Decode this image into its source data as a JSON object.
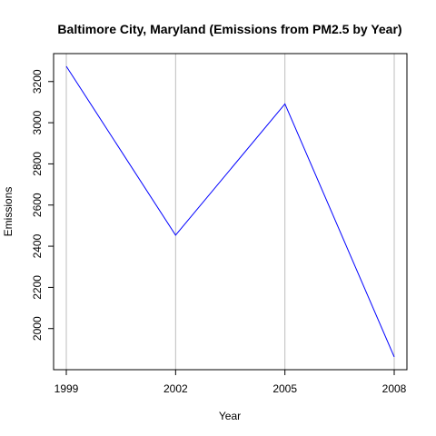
{
  "chart_data": {
    "type": "line",
    "title": "Baltimore City, Maryland (Emissions from PM2.5 by Year)",
    "xlabel": "Year",
    "ylabel": "Emissions",
    "x": [
      1999,
      2002,
      2005,
      2008
    ],
    "series": [
      {
        "values": [
          3274.18,
          2453.92,
          3091.35,
          1862.28
        ],
        "color": "#0000ff"
      }
    ],
    "xlim": [
      1999,
      2008
    ],
    "ylim": [
      1862,
      3274
    ],
    "xticks": [
      1999,
      2002,
      2005,
      2008
    ],
    "yticks": [
      2000,
      2200,
      2400,
      2600,
      2800,
      3000,
      3200
    ],
    "vertical_grid": true,
    "grid_color": "#bebebe"
  }
}
